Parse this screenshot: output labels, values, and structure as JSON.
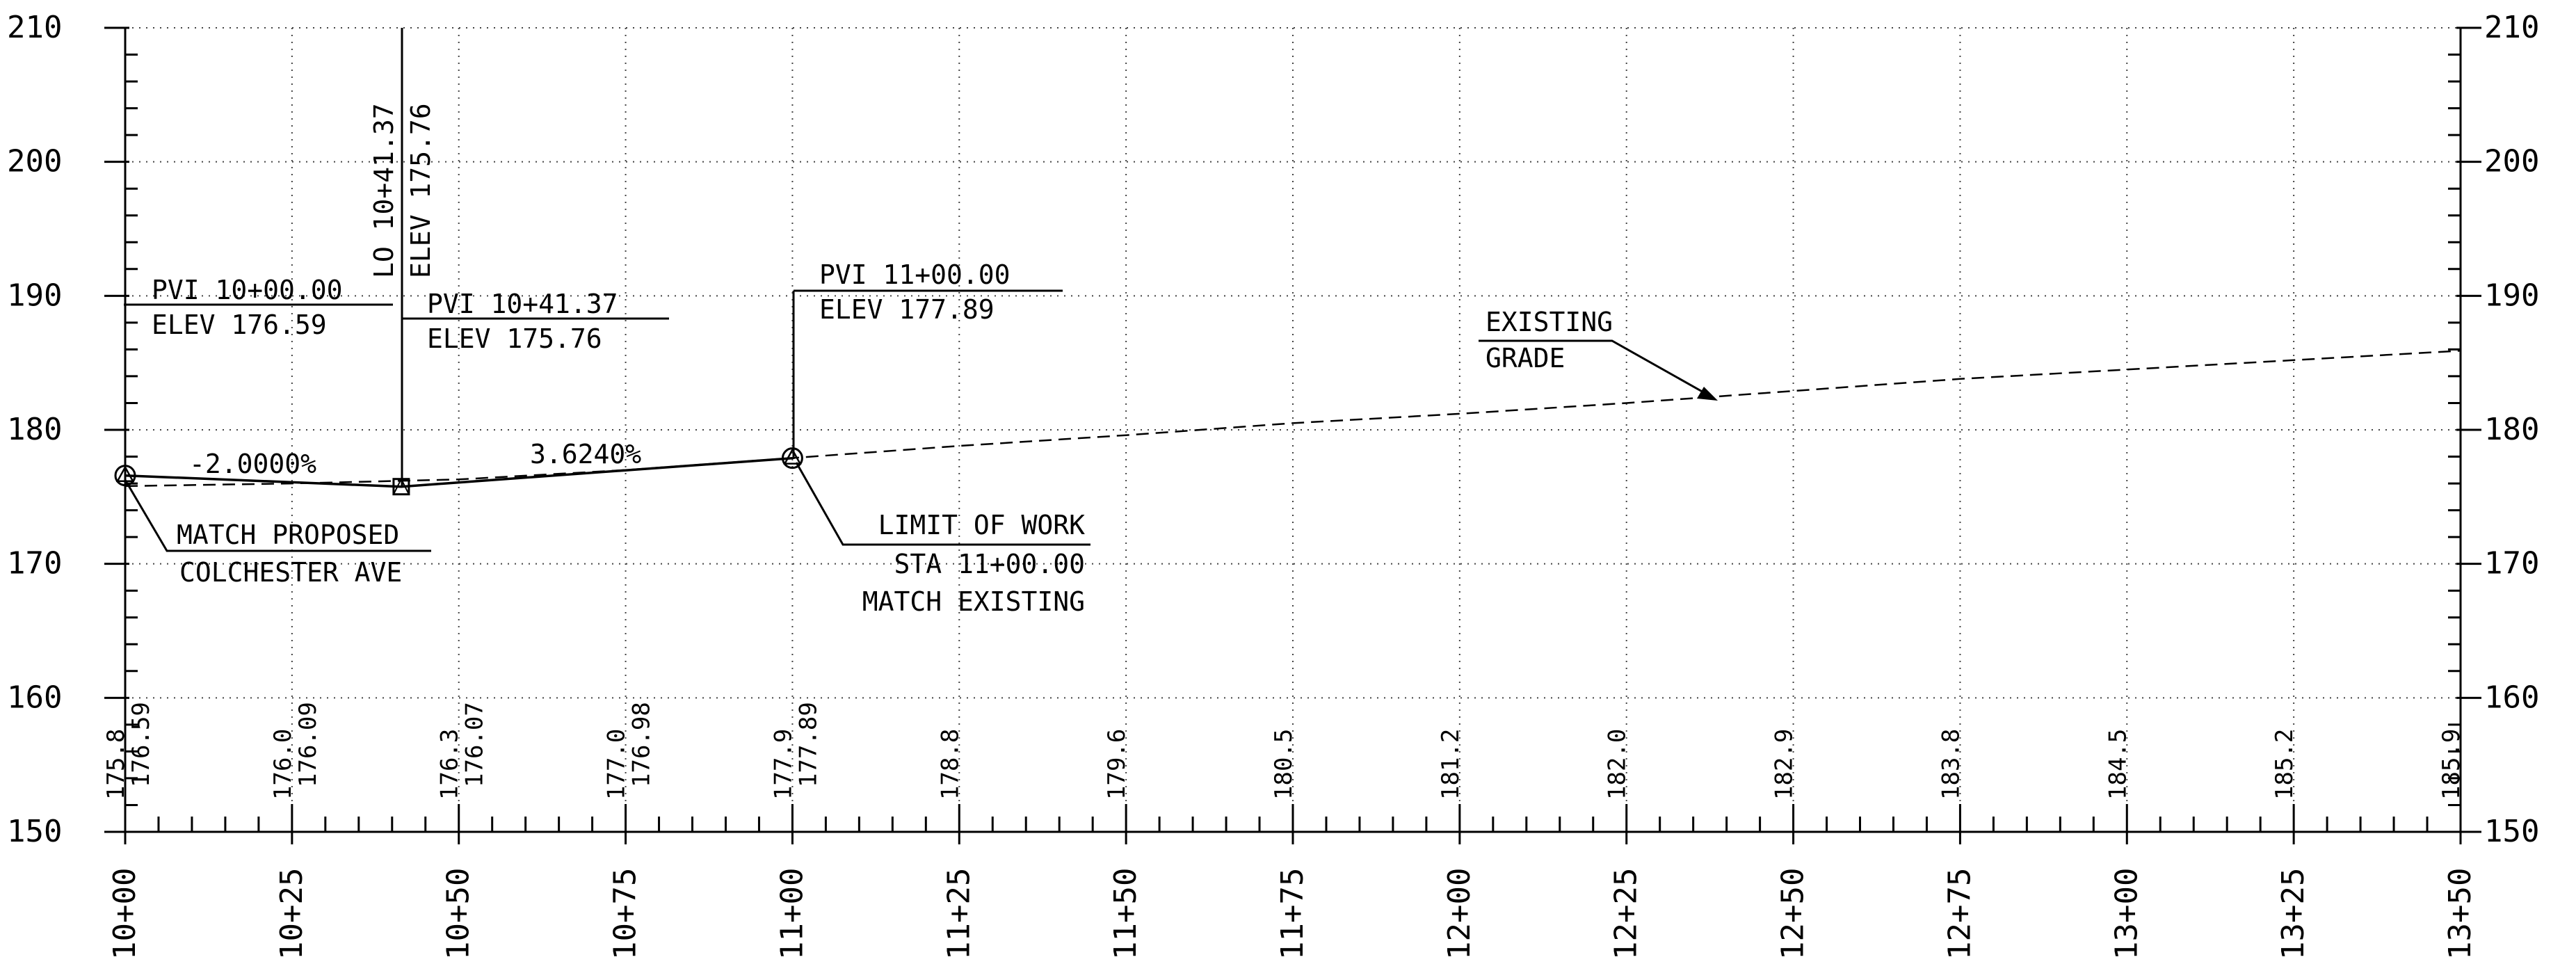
{
  "chart_data": {
    "type": "line",
    "title": "",
    "xlabel": "",
    "ylabel": "",
    "xlim": [
      1000,
      1350
    ],
    "ylim": [
      150,
      210
    ],
    "grid": true,
    "y_ticks": [
      150,
      160,
      170,
      180,
      190,
      200,
      210
    ],
    "y_tick_labels": [
      "150",
      "160",
      "170",
      "180",
      "190",
      "200",
      "210"
    ],
    "x_ticks": [
      1000,
      1025,
      1050,
      1075,
      1100,
      1125,
      1150,
      1175,
      1200,
      1225,
      1250,
      1275,
      1300,
      1325,
      1350
    ],
    "x_tick_labels": [
      "10+00",
      "10+25",
      "10+50",
      "10+75",
      "11+00",
      "11+25",
      "11+50",
      "11+75",
      "12+00",
      "12+25",
      "12+50",
      "12+75",
      "13+00",
      "13+25",
      "13+50"
    ],
    "series": [
      {
        "style": "solid",
        "x": [
          1000,
          1041.37,
          1100
        ],
        "y": [
          176.59,
          175.76,
          177.89
        ]
      },
      {
        "style": "dashed",
        "x": [
          1000,
          1025,
          1050,
          1075,
          1100,
          1125,
          1150,
          1175,
          1200,
          1225,
          1250,
          1275,
          1300,
          1325,
          1350
        ],
        "y": [
          175.8,
          176.0,
          176.3,
          177.0,
          177.9,
          178.8,
          179.6,
          180.5,
          181.2,
          182.0,
          182.9,
          183.8,
          184.5,
          185.2,
          185.9
        ]
      }
    ],
    "bottom_labels": [
      {
        "x": 1000,
        "existing": "175.8",
        "proposed": "176.59"
      },
      {
        "x": 1025,
        "existing": "176.0",
        "proposed": "176.09"
      },
      {
        "x": 1050,
        "existing": "176.3",
        "proposed": "176.07"
      },
      {
        "x": 1075,
        "existing": "177.0",
        "proposed": "176.98"
      },
      {
        "x": 1100,
        "existing": "177.9",
        "proposed": "177.89"
      },
      {
        "x": 1125,
        "existing": "178.8",
        "proposed": ""
      },
      {
        "x": 1150,
        "existing": "179.6",
        "proposed": ""
      },
      {
        "x": 1175,
        "existing": "180.5",
        "proposed": ""
      },
      {
        "x": 1200,
        "existing": "181.2",
        "proposed": ""
      },
      {
        "x": 1225,
        "existing": "182.0",
        "proposed": ""
      },
      {
        "x": 1250,
        "existing": "182.9",
        "proposed": ""
      },
      {
        "x": 1275,
        "existing": "183.8",
        "proposed": ""
      },
      {
        "x": 1300,
        "existing": "184.5",
        "proposed": ""
      },
      {
        "x": 1325,
        "existing": "185.2",
        "proposed": ""
      },
      {
        "x": 1350,
        "existing": "185.9",
        "proposed": ""
      }
    ],
    "markers": [
      {
        "x": 1000,
        "y": 176.59,
        "symbol": "triangle-circle"
      },
      {
        "x": 1041.37,
        "y": 175.76,
        "symbol": "square"
      },
      {
        "x": 1100,
        "y": 177.89,
        "symbol": "triangle-circle"
      }
    ],
    "annotations": {
      "pvi1": {
        "line1": "PVI 10+00.00",
        "line2": "ELEV 176.59"
      },
      "pvi2": {
        "line1": "PVI 10+41.37",
        "line2": "ELEV 175.76"
      },
      "pvi3": {
        "line1": "PVI 11+00.00",
        "line2": "ELEV 177.89"
      },
      "low_point": {
        "line1": "LO 10+41.37",
        "line2": "ELEV 175.76"
      },
      "grade1": "-2.0000%",
      "grade2": "3.6240%",
      "match_proposed": {
        "line1": "MATCH PROPOSED",
        "line2": "COLCHESTER AVE"
      },
      "limit_of_work": {
        "line1": "LIMIT OF WORK",
        "line2": "STA 11+00.00",
        "line3": "MATCH EXISTING"
      },
      "existing_grade": {
        "line1": "EXISTING",
        "line2": "GRADE"
      }
    }
  }
}
